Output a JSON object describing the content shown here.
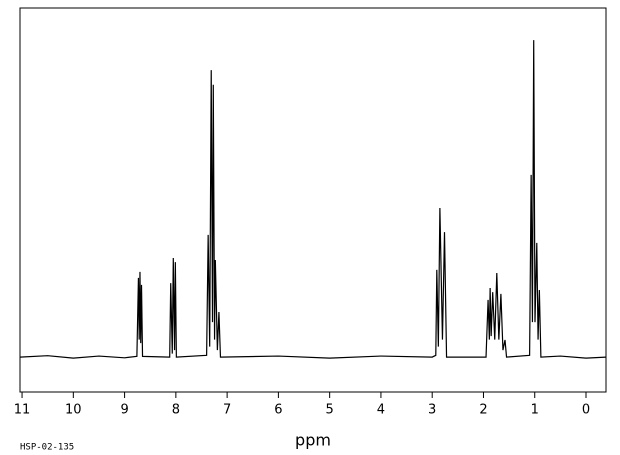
{
  "chart_data": {
    "type": "line",
    "x_label": "ppm",
    "footnote": "HSP-02-135",
    "x": [
      11.04,
      10.5,
      10,
      9.5,
      9,
      8.76,
      8.73,
      8.715,
      8.7,
      8.685,
      8.67,
      8.65,
      8.12,
      8.1,
      8.07,
      8.05,
      8.025,
      8.01,
      7.99,
      7.4,
      7.37,
      7.34,
      7.31,
      7.285,
      7.27,
      7.245,
      7.23,
      7.19,
      7.16,
      7.13,
      6,
      5,
      4,
      3,
      2.93,
      2.91,
      2.88,
      2.85,
      2.8,
      2.76,
      2.72,
      1.95,
      1.91,
      1.885,
      1.87,
      1.85,
      1.82,
      1.78,
      1.74,
      1.7,
      1.66,
      1.62,
      1.58,
      1.55,
      1.1,
      1.07,
      1.045,
      1.02,
      0.995,
      0.96,
      0.935,
      0.91,
      0.88,
      0.5,
      0,
      -0.39
    ],
    "values": [
      0,
      0.004,
      -0.003,
      0.003,
      -0.002,
      0.002,
      0.227,
      0.05,
      0.244,
      0.04,
      0.207,
      0.002,
      0,
      0.212,
      0.01,
      0.284,
      0.02,
      0.272,
      0,
      0.005,
      0.35,
      0.03,
      0.822,
      0.1,
      0.78,
      0.05,
      0.278,
      0.02,
      0.129,
      0,
      0.003,
      -0.003,
      0.003,
      0,
      0.005,
      0.25,
      0.03,
      0.427,
      0.05,
      0.358,
      0,
      0,
      0.164,
      0.05,
      0.198,
      0.06,
      0.186,
      0.05,
      0.241,
      0.05,
      0.181,
      0.02,
      0.049,
      0,
      0.005,
      0.522,
      0.1,
      0.908,
      0.1,
      0.327,
      0.05,
      0.192,
      0,
      0.003,
      -0.003,
      0
    ],
    "color": "#000000",
    "xlim": [
      11.04,
      -0.39
    ],
    "ylim": [
      -0.1,
      1.0
    ],
    "xticks": [
      11,
      10,
      9,
      8,
      7,
      6,
      5,
      4,
      3,
      2,
      1,
      0
    ]
  }
}
